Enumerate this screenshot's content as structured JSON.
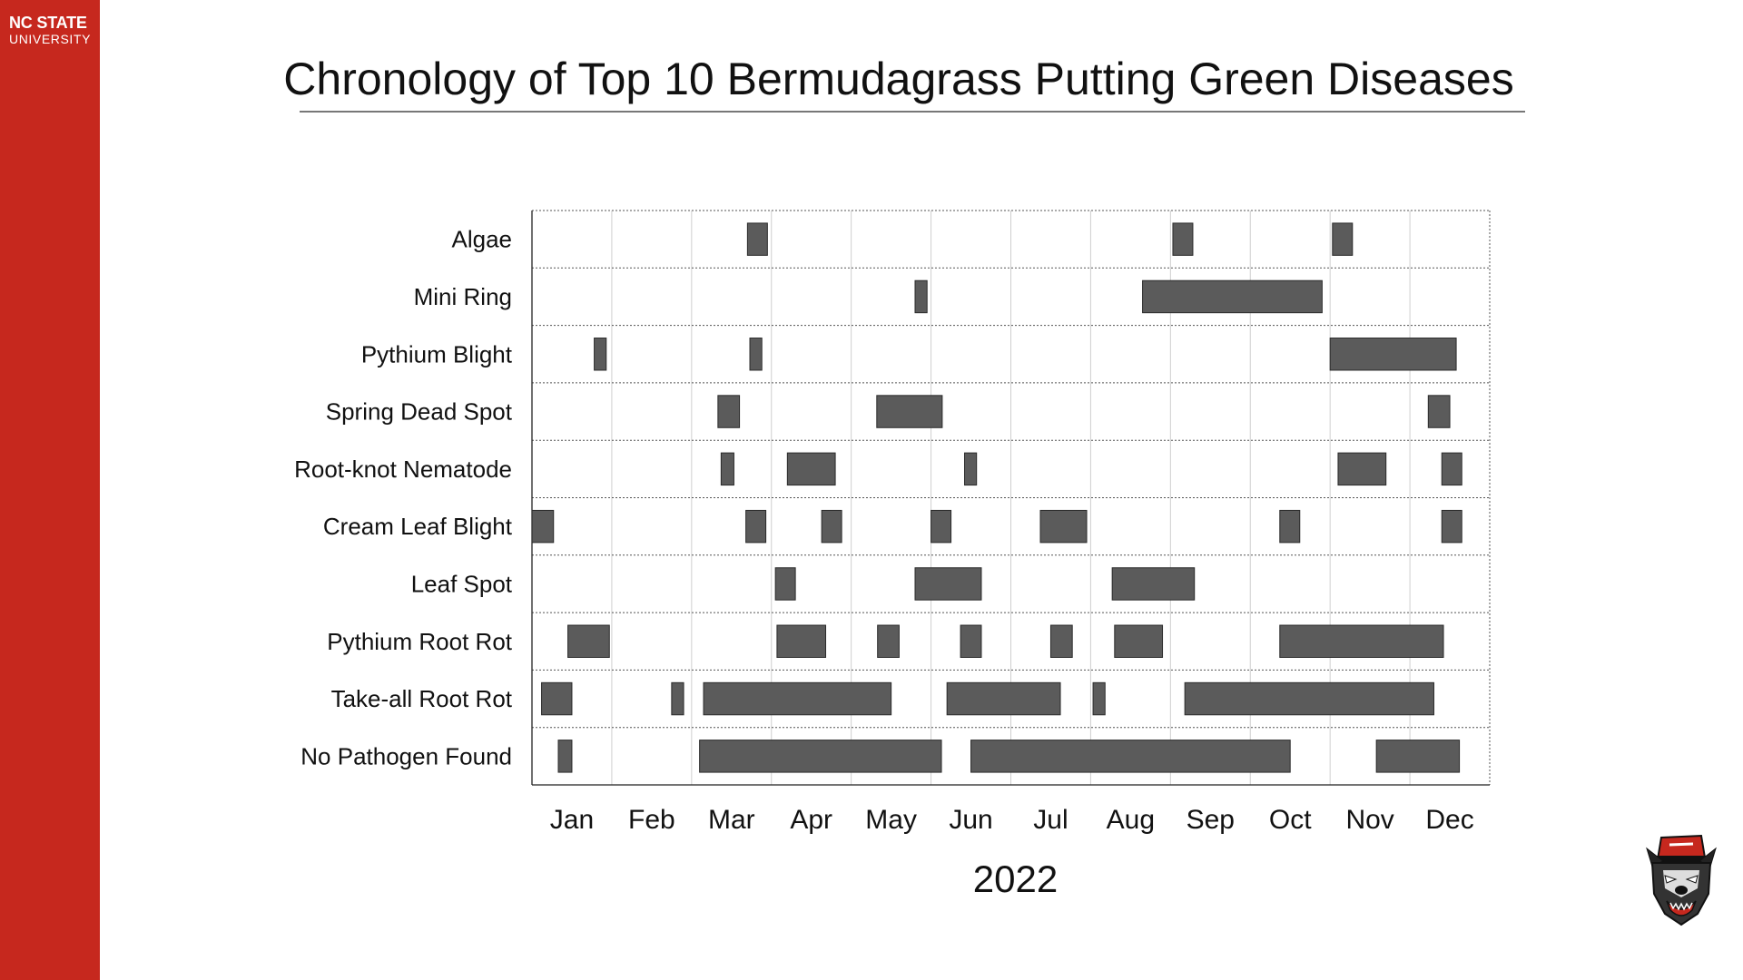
{
  "slide": {
    "brand_line1": "NC STATE",
    "brand_line2": "UNIVERSITY",
    "title": "Chronology of Top 10 Bermudagrass Putting Green Diseases"
  },
  "colors": {
    "brand_red": "#c6281e",
    "bar_fill": "#5b5b5b",
    "bar_stroke": "#2a2a2a"
  },
  "icons": {
    "logo": "wolf-mascot-icon"
  },
  "chart_data": {
    "type": "timeline",
    "title": "Chronology of Top 10 Bermudagrass Putting Green Diseases",
    "xlabel": "2022",
    "x_unit": "month (fraction of year, 0 = Jan 1, 12 = Dec 31)",
    "xlim": [
      0,
      12
    ],
    "months": [
      "Jan",
      "Feb",
      "Mar",
      "Apr",
      "May",
      "Jun",
      "Jul",
      "Aug",
      "Sep",
      "Oct",
      "Nov",
      "Dec"
    ],
    "grid": true,
    "categories": [
      "Algae",
      "Mini Ring",
      "Pythium Blight",
      "Spring Dead Spot",
      "Root-knot Nematode",
      "Cream Leaf Blight",
      "Leaf Spot",
      "Pythium Root Rot",
      "Take-all Root Rot",
      "No Pathogen Found"
    ],
    "series": [
      {
        "category": "Algae",
        "intervals": [
          [
            2.7,
            2.95
          ],
          [
            8.03,
            8.28
          ],
          [
            10.03,
            10.28
          ]
        ]
      },
      {
        "category": "Mini Ring",
        "intervals": [
          [
            4.8,
            4.95
          ],
          [
            7.65,
            9.9
          ]
        ]
      },
      {
        "category": "Pythium Blight",
        "intervals": [
          [
            0.78,
            0.93
          ],
          [
            2.73,
            2.88
          ],
          [
            10.0,
            11.58
          ]
        ]
      },
      {
        "category": "Spring Dead Spot",
        "intervals": [
          [
            2.33,
            2.6
          ],
          [
            4.32,
            5.14
          ],
          [
            11.23,
            11.5
          ]
        ]
      },
      {
        "category": "Root-knot Nematode",
        "intervals": [
          [
            2.37,
            2.53
          ],
          [
            3.2,
            3.8
          ],
          [
            5.42,
            5.57
          ],
          [
            10.1,
            10.7
          ],
          [
            11.4,
            11.65
          ]
        ]
      },
      {
        "category": "Cream Leaf Blight",
        "intervals": [
          [
            0.0,
            0.27
          ],
          [
            2.68,
            2.93
          ],
          [
            3.63,
            3.88
          ],
          [
            5.0,
            5.25
          ],
          [
            6.37,
            6.95
          ],
          [
            9.37,
            9.62
          ],
          [
            11.4,
            11.65
          ]
        ]
      },
      {
        "category": "Leaf Spot",
        "intervals": [
          [
            3.05,
            3.3
          ],
          [
            4.8,
            5.63
          ],
          [
            7.27,
            8.3
          ]
        ]
      },
      {
        "category": "Pythium Root Rot",
        "intervals": [
          [
            0.45,
            0.97
          ],
          [
            3.07,
            3.68
          ],
          [
            4.33,
            4.6
          ],
          [
            5.37,
            5.63
          ],
          [
            6.5,
            6.77
          ],
          [
            7.3,
            7.9
          ],
          [
            9.37,
            11.42
          ]
        ]
      },
      {
        "category": "Take-all Root Rot",
        "intervals": [
          [
            0.12,
            0.5
          ],
          [
            1.75,
            1.9
          ],
          [
            2.15,
            4.5
          ],
          [
            5.2,
            6.62
          ],
          [
            7.03,
            7.18
          ],
          [
            8.18,
            11.3
          ]
        ]
      },
      {
        "category": "No Pathogen Found",
        "intervals": [
          [
            0.33,
            0.5
          ],
          [
            2.1,
            5.13
          ],
          [
            5.5,
            9.5
          ],
          [
            10.58,
            11.62
          ]
        ]
      }
    ]
  }
}
